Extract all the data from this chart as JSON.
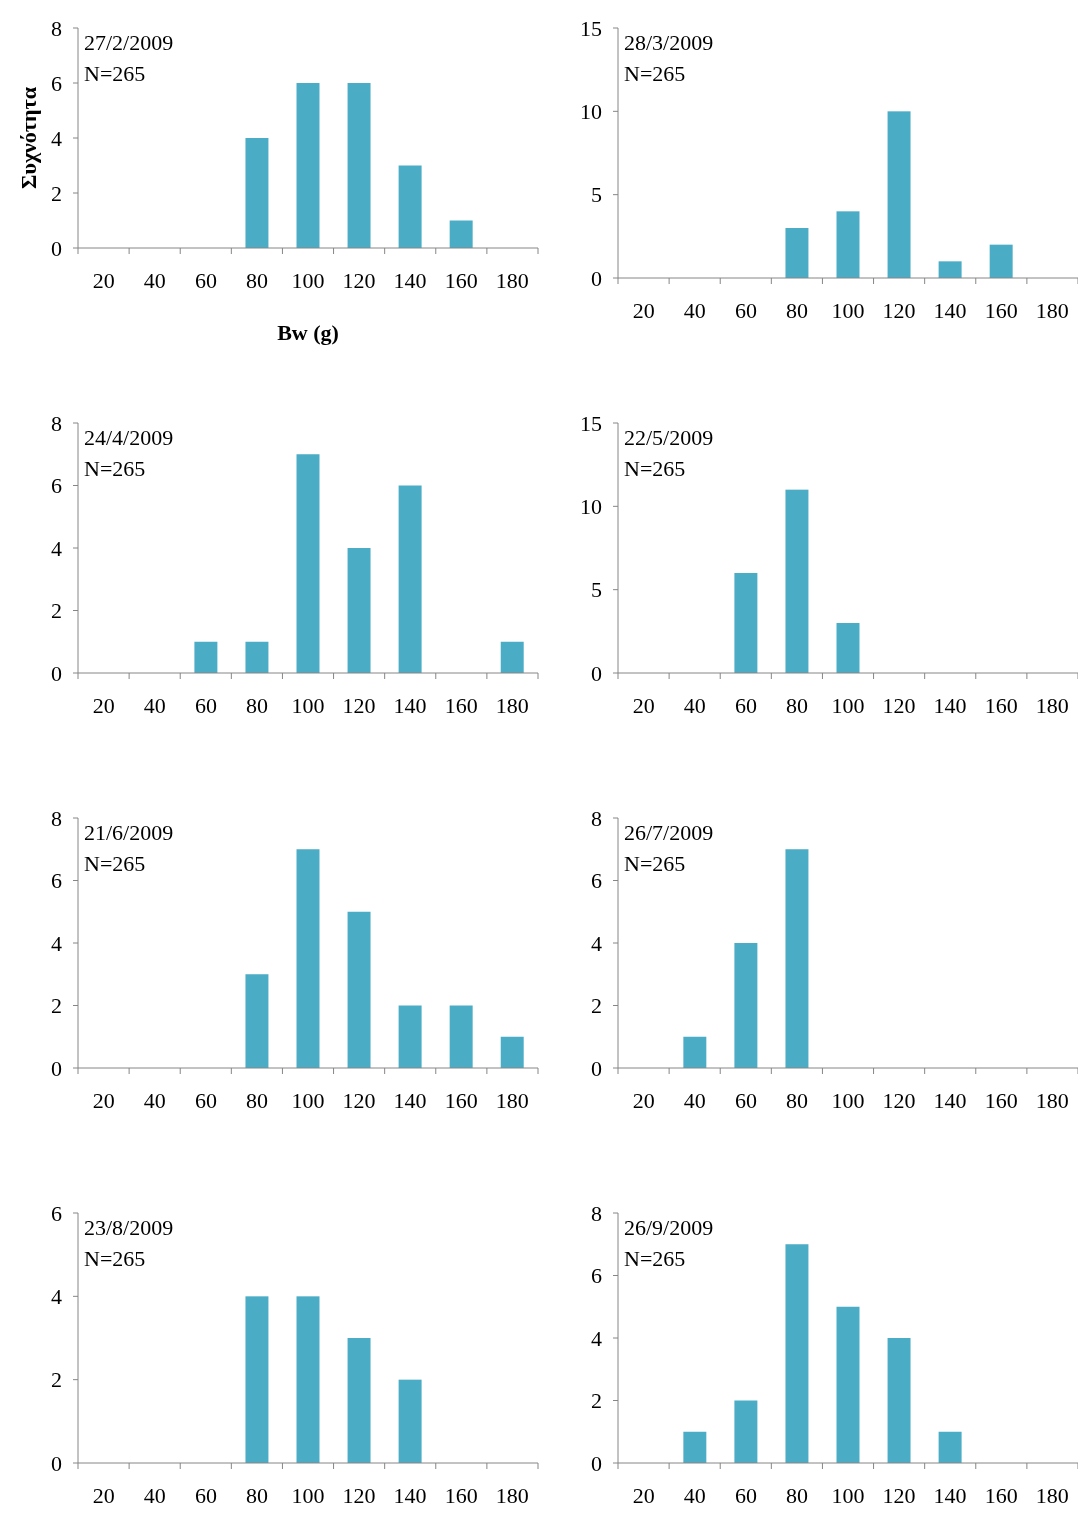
{
  "chart_data": [
    {
      "type": "bar",
      "title": "27/2/2009",
      "subtitle": "N=265",
      "xlabel": "Bw (g)",
      "ylabel": "Συχνότητα",
      "categories": [
        "20",
        "40",
        "60",
        "80",
        "100",
        "120",
        "140",
        "160",
        "180"
      ],
      "values": [
        0,
        0,
        0,
        4,
        6,
        6,
        3,
        1,
        0
      ],
      "color": "#4bacc6",
      "ylim": [
        0,
        8
      ],
      "yticks": [
        0,
        2,
        4,
        6,
        8
      ]
    },
    {
      "type": "bar",
      "title": "28/3/2009",
      "subtitle": "N=265",
      "categories": [
        "20",
        "40",
        "60",
        "80",
        "100",
        "120",
        "140",
        "160",
        "180"
      ],
      "values": [
        0,
        0,
        0,
        3,
        4,
        10,
        1,
        2,
        0
      ],
      "color": "#4bacc6",
      "ylim": [
        0,
        15
      ],
      "yticks": [
        0,
        5,
        10,
        15
      ]
    },
    {
      "type": "bar",
      "title": "24/4/2009",
      "subtitle": "N=265",
      "categories": [
        "20",
        "40",
        "60",
        "80",
        "100",
        "120",
        "140",
        "160",
        "180"
      ],
      "values": [
        0,
        0,
        1,
        1,
        7,
        4,
        6,
        0,
        1
      ],
      "color": "#4bacc6",
      "ylim": [
        0,
        8
      ],
      "yticks": [
        0,
        2,
        4,
        6,
        8
      ]
    },
    {
      "type": "bar",
      "title": "22/5/2009",
      "subtitle": "N=265",
      "categories": [
        "20",
        "40",
        "60",
        "80",
        "100",
        "120",
        "140",
        "160",
        "180"
      ],
      "values": [
        0,
        0,
        6,
        11,
        3,
        0,
        0,
        0,
        0
      ],
      "color": "#4bacc6",
      "ylim": [
        0,
        15
      ],
      "yticks": [
        0,
        5,
        10,
        15
      ]
    },
    {
      "type": "bar",
      "title": "21/6/2009",
      "subtitle": "N=265",
      "categories": [
        "20",
        "40",
        "60",
        "80",
        "100",
        "120",
        "140",
        "160",
        "180"
      ],
      "values": [
        0,
        0,
        0,
        3,
        7,
        5,
        2,
        2,
        1
      ],
      "color": "#4bacc6",
      "ylim": [
        0,
        8
      ],
      "yticks": [
        0,
        2,
        4,
        6,
        8
      ]
    },
    {
      "type": "bar",
      "title": "26/7/2009",
      "subtitle": "N=265",
      "categories": [
        "20",
        "40",
        "60",
        "80",
        "100",
        "120",
        "140",
        "160",
        "180"
      ],
      "values": [
        0,
        1,
        4,
        7,
        0,
        0,
        0,
        0,
        0
      ],
      "color": "#4bacc6",
      "ylim": [
        0,
        8
      ],
      "yticks": [
        0,
        2,
        4,
        6,
        8
      ]
    },
    {
      "type": "bar",
      "title": "23/8/2009",
      "subtitle": "N=265",
      "categories": [
        "20",
        "40",
        "60",
        "80",
        "100",
        "120",
        "140",
        "160",
        "180"
      ],
      "values": [
        0,
        0,
        0,
        4,
        4,
        3,
        2,
        0,
        0
      ],
      "color": "#4bacc6",
      "ylim": [
        0,
        6
      ],
      "yticks": [
        0,
        2,
        4,
        6
      ]
    },
    {
      "type": "bar",
      "title": "26/9/2009",
      "subtitle": "N=265",
      "categories": [
        "20",
        "40",
        "60",
        "80",
        "100",
        "120",
        "140",
        "160",
        "180"
      ],
      "values": [
        0,
        1,
        2,
        7,
        5,
        4,
        1,
        0,
        0
      ],
      "color": "#4bacc6",
      "ylim": [
        0,
        8
      ],
      "yticks": [
        0,
        2,
        4,
        6,
        8
      ]
    }
  ]
}
